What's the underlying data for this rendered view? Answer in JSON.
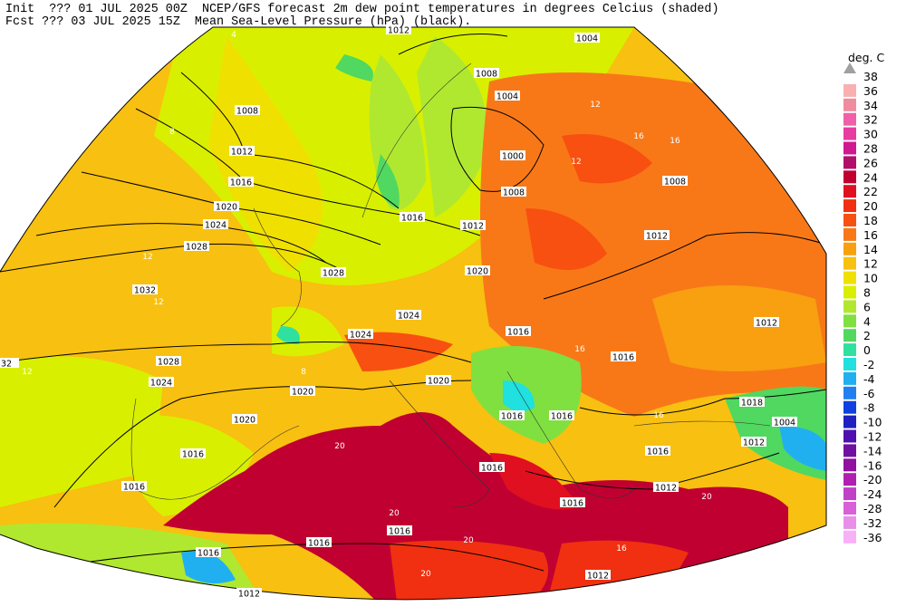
{
  "header": {
    "line1": "Init  ??? 01 JUL 2025 00Z  NCEP/GFS forecast 2m dew point temperatures in degrees Celcius (shaded)",
    "line2": "Fcst ??? 03 JUL 2025 15Z  Mean Sea-Level Pressure (hPa) (black)."
  },
  "colorbar": {
    "title": "deg. C",
    "levels": [
      38,
      36,
      34,
      32,
      30,
      28,
      26,
      24,
      22,
      20,
      18,
      16,
      14,
      12,
      10,
      8,
      6,
      4,
      2,
      0,
      -2,
      -4,
      -6,
      -8,
      -10,
      -12,
      -14,
      -16,
      -20,
      -24,
      -28,
      -32,
      -36
    ],
    "colors": [
      "#a0a0a0",
      "#f8b0b0",
      "#f08ca0",
      "#f060a8",
      "#e83ca0",
      "#d01890",
      "#b0106a",
      "#c00030",
      "#e01020",
      "#f03010",
      "#f85010",
      "#f87818",
      "#f8a010",
      "#f8c010",
      "#f0e000",
      "#d8f000",
      "#b0e830",
      "#80e040",
      "#50d860",
      "#30e0a0",
      "#20e0e0",
      "#20b0f0",
      "#2080f0",
      "#1040e0",
      "#2020c0",
      "#5010b0",
      "#7010a0",
      "#9010a0",
      "#b020b0",
      "#c040c8",
      "#d860d8",
      "#e890e8",
      "#f8b0f8"
    ]
  },
  "map_labels": {
    "isobars": [
      "1012",
      "1004",
      "1008",
      "1004",
      "1008",
      "1012",
      "1000",
      "1016",
      "1008",
      "1020",
      "1016",
      "1012",
      "1024",
      "1028",
      "1012",
      "1008",
      "1028",
      "1020",
      "1032",
      "1024",
      "1012",
      "1024",
      "1016",
      "1016",
      "1028",
      "1020",
      "1024",
      "1020",
      "1018",
      "1016",
      "1016",
      "1020",
      "1004",
      "1016",
      "1012",
      "1016",
      "1016",
      "1012",
      "1016",
      "1016",
      "1016",
      "1016",
      "1016",
      "1012",
      "1012",
      "32"
    ],
    "dewpoint": [
      "12",
      "16",
      "16",
      "12",
      "12",
      "12",
      "8",
      "16",
      "20",
      "20",
      "20",
      "20",
      "16",
      "16",
      "20",
      "8",
      "4",
      "12"
    ]
  }
}
